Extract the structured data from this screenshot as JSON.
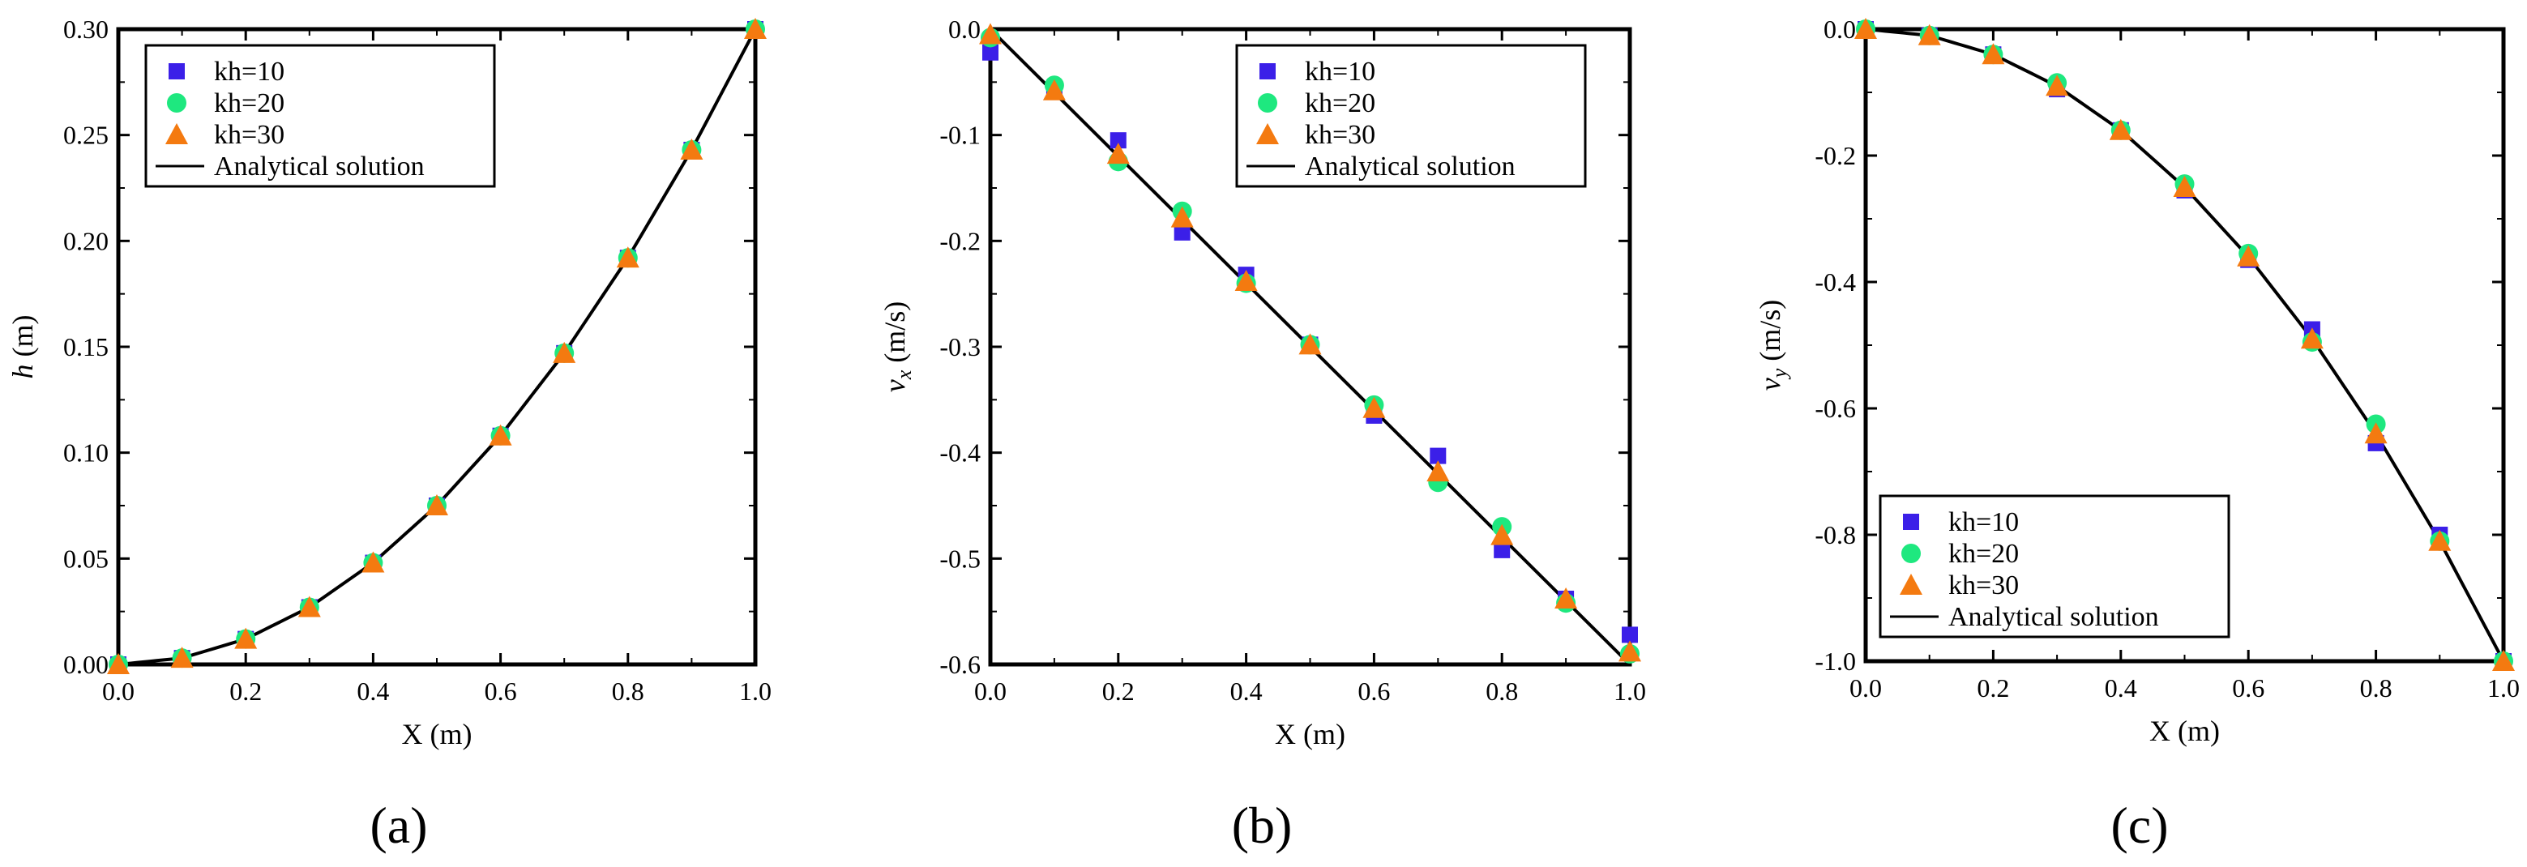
{
  "figure_panels": [
    "(a)",
    "(b)",
    "(c)"
  ],
  "colors": {
    "kh10": "#3b1fe8",
    "kh20": "#1ee87f",
    "kh30": "#f47a10",
    "analytical": "#000000",
    "axes": "#000000"
  },
  "chart_data": [
    {
      "type": "scatter",
      "panel": "(a)",
      "xlabel": "X (m)",
      "ylabel_symbol": "h",
      "ylabel_unit": " (m)",
      "xlim": [
        0.0,
        1.0
      ],
      "ylim": [
        0.0,
        0.3
      ],
      "xticks": [
        0.0,
        0.2,
        0.4,
        0.6,
        0.8,
        1.0
      ],
      "xtick_labels": [
        "0.0",
        "0.2",
        "0.4",
        "0.6",
        "0.8",
        "1.0"
      ],
      "yticks": [
        0.0,
        0.05,
        0.1,
        0.15,
        0.2,
        0.25,
        0.3
      ],
      "ytick_labels": [
        "0.00",
        "0.05",
        "0.10",
        "0.15",
        "0.20",
        "0.25",
        "0.30"
      ],
      "legend_position": "top-left",
      "series": [
        {
          "name": "kh=10",
          "marker": "square",
          "color_key": "kh10",
          "x": [
            0.0,
            0.1,
            0.2,
            0.3,
            0.4,
            0.5,
            0.6,
            0.7,
            0.8,
            0.9,
            1.0
          ],
          "y": [
            0.0,
            0.003,
            0.012,
            0.027,
            0.048,
            0.075,
            0.108,
            0.147,
            0.192,
            0.243,
            0.3
          ]
        },
        {
          "name": "kh=20",
          "marker": "circle",
          "color_key": "kh20",
          "x": [
            0.0,
            0.1,
            0.2,
            0.3,
            0.4,
            0.5,
            0.6,
            0.7,
            0.8,
            0.9,
            1.0
          ],
          "y": [
            0.0,
            0.003,
            0.012,
            0.027,
            0.048,
            0.075,
            0.108,
            0.147,
            0.192,
            0.243,
            0.3
          ]
        },
        {
          "name": "kh=30",
          "marker": "triangle",
          "color_key": "kh30",
          "x": [
            0.0,
            0.1,
            0.2,
            0.3,
            0.4,
            0.5,
            0.6,
            0.7,
            0.8,
            0.9,
            1.0
          ],
          "y": [
            0.0,
            0.003,
            0.012,
            0.027,
            0.048,
            0.075,
            0.108,
            0.147,
            0.192,
            0.243,
            0.3
          ]
        },
        {
          "name": "Analytical solution",
          "marker": "line",
          "color_key": "analytical",
          "x": [
            0.0,
            0.1,
            0.2,
            0.3,
            0.4,
            0.5,
            0.6,
            0.7,
            0.8,
            0.9,
            1.0
          ],
          "y": [
            0.0,
            0.003,
            0.012,
            0.027,
            0.048,
            0.075,
            0.108,
            0.147,
            0.192,
            0.243,
            0.3
          ]
        }
      ]
    },
    {
      "type": "scatter",
      "panel": "(b)",
      "xlabel": "X (m)",
      "ylabel_symbol": "v",
      "ylabel_sub": "x",
      "ylabel_unit": " (m/s)",
      "xlim": [
        0.0,
        1.0
      ],
      "ylim": [
        -0.6,
        0.0
      ],
      "xticks": [
        0.0,
        0.2,
        0.4,
        0.6,
        0.8,
        1.0
      ],
      "xtick_labels": [
        "0.0",
        "0.2",
        "0.4",
        "0.6",
        "0.8",
        "1.0"
      ],
      "yticks": [
        0.0,
        -0.1,
        -0.2,
        -0.3,
        -0.4,
        -0.5,
        -0.6
      ],
      "ytick_labels": [
        "0.0",
        "-0.1",
        "-0.2",
        "-0.3",
        "-0.4",
        "-0.5",
        "-0.6"
      ],
      "legend_position": "top-right",
      "series": [
        {
          "name": "kh=10",
          "marker": "square",
          "color_key": "kh10",
          "x": [
            0.0,
            0.1,
            0.2,
            0.3,
            0.4,
            0.5,
            0.6,
            0.7,
            0.8,
            0.9,
            1.0
          ],
          "y": [
            -0.022,
            -0.058,
            -0.105,
            -0.192,
            -0.232,
            -0.298,
            -0.365,
            -0.403,
            -0.492,
            -0.538,
            -0.572
          ]
        },
        {
          "name": "kh=20",
          "marker": "circle",
          "color_key": "kh20",
          "x": [
            0.0,
            0.1,
            0.2,
            0.3,
            0.4,
            0.5,
            0.6,
            0.7,
            0.8,
            0.9,
            1.0
          ],
          "y": [
            -0.008,
            -0.053,
            -0.125,
            -0.172,
            -0.24,
            -0.298,
            -0.355,
            -0.428,
            -0.47,
            -0.542,
            -0.59
          ]
        },
        {
          "name": "kh=30",
          "marker": "triangle",
          "color_key": "kh30",
          "x": [
            0.0,
            0.1,
            0.2,
            0.3,
            0.4,
            0.5,
            0.6,
            0.7,
            0.8,
            0.9,
            1.0
          ],
          "y": [
            -0.005,
            -0.058,
            -0.118,
            -0.178,
            -0.238,
            -0.298,
            -0.358,
            -0.418,
            -0.478,
            -0.538,
            -0.588
          ]
        },
        {
          "name": "Analytical solution",
          "marker": "line",
          "color_key": "analytical",
          "x": [
            0.0,
            1.0
          ],
          "y": [
            0.0,
            -0.6
          ]
        }
      ]
    },
    {
      "type": "scatter",
      "panel": "(c)",
      "xlabel": "X (m)",
      "ylabel_symbol": "v",
      "ylabel_sub": "y",
      "ylabel_unit": " (m/s)",
      "xlim": [
        0.0,
        1.0
      ],
      "ylim": [
        -1.0,
        0.0
      ],
      "xticks": [
        0.0,
        0.2,
        0.4,
        0.6,
        0.8,
        1.0
      ],
      "xtick_labels": [
        "0.0",
        "0.2",
        "0.4",
        "0.6",
        "0.8",
        "1.0"
      ],
      "yticks": [
        0.0,
        -0.2,
        -0.4,
        -0.6,
        -0.8,
        -1.0
      ],
      "ytick_labels": [
        "0.0",
        "-0.2",
        "-0.4",
        "-0.6",
        "-0.8",
        "-1.0"
      ],
      "legend_position": "bottom-left",
      "series": [
        {
          "name": "kh=10",
          "marker": "square",
          "color_key": "kh10",
          "x": [
            0.0,
            0.1,
            0.2,
            0.3,
            0.4,
            0.5,
            0.6,
            0.7,
            0.8,
            0.9,
            1.0
          ],
          "y": [
            0.0,
            -0.01,
            -0.04,
            -0.095,
            -0.16,
            -0.255,
            -0.365,
            -0.475,
            -0.655,
            -0.8,
            -1.0
          ]
        },
        {
          "name": "kh=20",
          "marker": "circle",
          "color_key": "kh20",
          "x": [
            0.0,
            0.1,
            0.2,
            0.3,
            0.4,
            0.5,
            0.6,
            0.7,
            0.8,
            0.9,
            1.0
          ],
          "y": [
            0.0,
            -0.01,
            -0.04,
            -0.085,
            -0.16,
            -0.245,
            -0.355,
            -0.495,
            -0.625,
            -0.81,
            -1.0
          ]
        },
        {
          "name": "kh=30",
          "marker": "triangle",
          "color_key": "kh30",
          "x": [
            0.0,
            0.1,
            0.2,
            0.3,
            0.4,
            0.5,
            0.6,
            0.7,
            0.8,
            0.9,
            1.0
          ],
          "y": [
            0.0,
            -0.01,
            -0.04,
            -0.09,
            -0.16,
            -0.25,
            -0.36,
            -0.49,
            -0.64,
            -0.81,
            -1.0
          ]
        },
        {
          "name": "Analytical solution",
          "marker": "line",
          "color_key": "analytical",
          "x": [
            0.0,
            0.1,
            0.2,
            0.3,
            0.4,
            0.5,
            0.6,
            0.7,
            0.8,
            0.9,
            1.0
          ],
          "y": [
            0.0,
            -0.01,
            -0.04,
            -0.09,
            -0.16,
            -0.25,
            -0.36,
            -0.49,
            -0.64,
            -0.81,
            -1.0
          ]
        }
      ]
    }
  ]
}
